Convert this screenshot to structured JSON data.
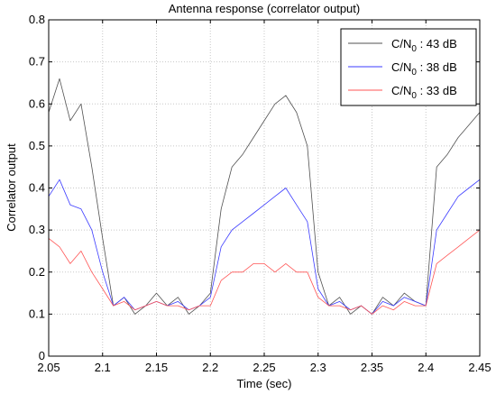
{
  "chart_data": {
    "type": "line",
    "title": "Antenna response (correlator output)",
    "xlabel": "Time (sec)",
    "ylabel": "Correlator output",
    "xlim": [
      2.05,
      2.45
    ],
    "ylim": [
      0,
      0.8
    ],
    "x_ticks": [
      "2.05",
      "2.1",
      "2.15",
      "2.2",
      "2.25",
      "2.3",
      "2.35",
      "2.4",
      "2.45"
    ],
    "y_ticks": [
      "0",
      "0.1",
      "0.2",
      "0.3",
      "0.4",
      "0.5",
      "0.6",
      "0.7",
      "0.8"
    ],
    "grid": true,
    "legend_position": "top-right",
    "x": [
      2.05,
      2.06,
      2.07,
      2.08,
      2.09,
      2.1,
      2.11,
      2.12,
      2.13,
      2.14,
      2.15,
      2.16,
      2.17,
      2.18,
      2.19,
      2.2,
      2.21,
      2.22,
      2.23,
      2.24,
      2.25,
      2.26,
      2.27,
      2.28,
      2.29,
      2.3,
      2.31,
      2.32,
      2.33,
      2.34,
      2.35,
      2.36,
      2.37,
      2.38,
      2.39,
      2.4,
      2.41,
      2.42,
      2.43,
      2.44,
      2.45
    ],
    "series": [
      {
        "name_main": "C/N",
        "name_sub": "0",
        "name_rest": " : 43 dB",
        "color": "#505050",
        "values": [
          0.58,
          0.66,
          0.56,
          0.6,
          0.45,
          0.28,
          0.12,
          0.14,
          0.1,
          0.12,
          0.15,
          0.12,
          0.14,
          0.1,
          0.12,
          0.15,
          0.35,
          0.45,
          0.48,
          0.52,
          0.56,
          0.6,
          0.62,
          0.58,
          0.5,
          0.2,
          0.12,
          0.14,
          0.1,
          0.12,
          0.1,
          0.14,
          0.12,
          0.15,
          0.13,
          0.12,
          0.45,
          0.48,
          0.52,
          0.55,
          0.58
        ]
      },
      {
        "name_main": "C/N",
        "name_sub": "0",
        "name_rest": " : 38 dB",
        "color": "#3b3bff",
        "values": [
          0.38,
          0.42,
          0.36,
          0.35,
          0.3,
          0.2,
          0.12,
          0.14,
          0.11,
          0.12,
          0.13,
          0.12,
          0.13,
          0.11,
          0.12,
          0.14,
          0.26,
          0.3,
          0.32,
          0.34,
          0.36,
          0.38,
          0.4,
          0.36,
          0.32,
          0.16,
          0.12,
          0.13,
          0.11,
          0.12,
          0.1,
          0.13,
          0.12,
          0.14,
          0.13,
          0.12,
          0.3,
          0.34,
          0.38,
          0.4,
          0.42
        ]
      },
      {
        "name_main": "C/N",
        "name_sub": "0",
        "name_rest": " : 33 dB",
        "color": "#ff5555",
        "values": [
          0.28,
          0.26,
          0.22,
          0.25,
          0.2,
          0.16,
          0.12,
          0.13,
          0.11,
          0.12,
          0.13,
          0.12,
          0.12,
          0.11,
          0.12,
          0.12,
          0.18,
          0.2,
          0.2,
          0.22,
          0.22,
          0.2,
          0.22,
          0.2,
          0.2,
          0.14,
          0.12,
          0.12,
          0.11,
          0.12,
          0.1,
          0.12,
          0.11,
          0.13,
          0.12,
          0.12,
          0.22,
          0.24,
          0.26,
          0.28,
          0.3
        ]
      }
    ]
  }
}
